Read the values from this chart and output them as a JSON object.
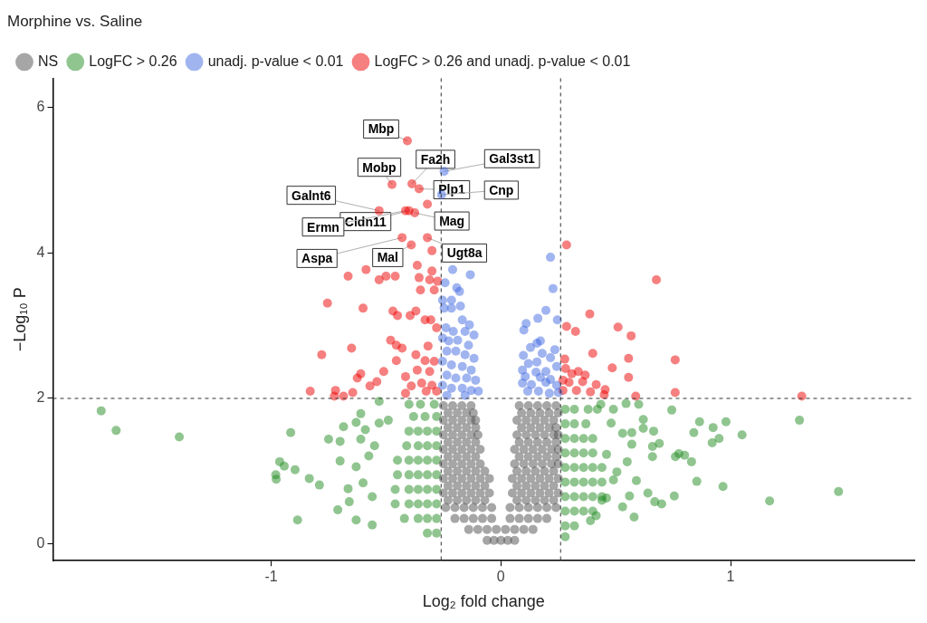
{
  "chart_data": {
    "type": "scatter",
    "title": "Morphine vs. Saline",
    "xlabel": "Log₂ fold change",
    "ylabel": "−Log₁₀ P",
    "legend": "top left",
    "marker": "circle",
    "xlim": [
      -1.95,
      1.8
    ],
    "xticks": [
      -1,
      0,
      1
    ],
    "ylim": [
      -0.23,
      6.4
    ],
    "yticks": [
      0,
      2,
      4,
      6
    ],
    "ref_lines": [
      {
        "axis": "x",
        "value": -0.26,
        "line_style": "dashed",
        "color": "#333333"
      },
      {
        "axis": "x",
        "value": 0.26,
        "line_style": "dashed",
        "color": "#333333"
      },
      {
        "axis": "y",
        "value": 2,
        "line_style": "dashed",
        "color": "#333333"
      }
    ],
    "series": [
      {
        "name": "NS",
        "color": "#4d4d4d",
        "x": [
          -0.06,
          -0.03,
          0,
          0.03,
          0.06,
          -0.14,
          -0.1,
          -0.06,
          -0.02,
          0.02,
          0.06,
          0.1,
          0.14,
          -0.2,
          -0.16,
          -0.12,
          -0.08,
          -0.04,
          0.04,
          0.08,
          0.12,
          0.16,
          0.2,
          -0.24,
          -0.2,
          -0.16,
          -0.12,
          -0.08,
          -0.04,
          0.04,
          0.08,
          0.12,
          0.16,
          0.2,
          0.24,
          -0.23,
          -0.19,
          -0.15,
          -0.11,
          -0.07,
          0.07,
          0.11,
          0.15,
          0.19,
          0.23,
          -0.25,
          -0.21,
          -0.17,
          -0.13,
          -0.09,
          -0.05,
          0.05,
          0.09,
          0.13,
          0.17,
          0.21,
          0.25,
          -0.23,
          -0.19,
          -0.15,
          -0.11,
          -0.07,
          0.07,
          0.11,
          0.15,
          0.19,
          0.23,
          -0.25,
          -0.21,
          -0.17,
          -0.13,
          -0.09,
          -0.05,
          0.05,
          0.09,
          0.13,
          0.17,
          0.21,
          0.25,
          -0.23,
          -0.19,
          -0.15,
          -0.11,
          -0.07,
          0.07,
          0.11,
          0.15,
          0.19,
          0.23,
          -0.25,
          -0.21,
          -0.17,
          -0.13,
          -0.09,
          0.06,
          0.1,
          0.14,
          0.18,
          0.22,
          0.25,
          -0.23,
          -0.19,
          -0.15,
          -0.11,
          0.08,
          0.12,
          0.16,
          0.2,
          0.24,
          -0.25,
          -0.21,
          -0.17,
          -0.13,
          -0.09,
          0.06,
          0.1,
          0.14,
          0.18,
          0.22,
          0.25,
          -0.23,
          -0.19,
          -0.15,
          -0.11,
          0.08,
          0.12,
          0.16,
          0.2,
          0.24,
          -0.25,
          -0.21,
          -0.17,
          -0.13,
          -0.1,
          0.07,
          0.11,
          0.15,
          0.19,
          0.23,
          0.25,
          -0.23,
          -0.19,
          -0.15,
          -0.11,
          0.09,
          0.13,
          0.17,
          0.21,
          0.24,
          -0.25,
          -0.21,
          -0.17,
          -0.13,
          -0.11,
          0.07,
          0.11,
          0.15,
          0.19,
          0.23,
          -0.23,
          -0.19,
          -0.15,
          -0.12,
          0.09,
          0.13,
          0.17,
          0.21,
          0.25,
          -0.25,
          -0.21,
          -0.17,
          -0.13,
          0.08,
          0.12,
          0.16,
          0.2,
          0.24
        ],
        "values": [
          0.05,
          0.05,
          0.05,
          0.05,
          0.05,
          0.2,
          0.2,
          0.2,
          0.2,
          0.2,
          0.2,
          0.2,
          0.2,
          0.35,
          0.35,
          0.35,
          0.35,
          0.35,
          0.35,
          0.35,
          0.35,
          0.35,
          0.35,
          0.5,
          0.5,
          0.5,
          0.5,
          0.5,
          0.5,
          0.5,
          0.5,
          0.5,
          0.5,
          0.5,
          0.5,
          0.6,
          0.6,
          0.6,
          0.6,
          0.6,
          0.6,
          0.6,
          0.6,
          0.6,
          0.6,
          0.7,
          0.7,
          0.7,
          0.7,
          0.7,
          0.7,
          0.7,
          0.7,
          0.7,
          0.7,
          0.7,
          0.7,
          0.8,
          0.8,
          0.8,
          0.8,
          0.8,
          0.8,
          0.8,
          0.8,
          0.8,
          0.8,
          0.9,
          0.9,
          0.9,
          0.9,
          0.9,
          0.9,
          0.9,
          0.9,
          0.9,
          0.9,
          0.9,
          0.9,
          1.0,
          1.0,
          1.0,
          1.0,
          1.0,
          1.0,
          1.0,
          1.0,
          1.0,
          1.0,
          1.1,
          1.1,
          1.1,
          1.1,
          1.1,
          1.1,
          1.1,
          1.1,
          1.1,
          1.1,
          1.1,
          1.2,
          1.2,
          1.2,
          1.2,
          1.2,
          1.2,
          1.2,
          1.2,
          1.2,
          1.3,
          1.3,
          1.3,
          1.3,
          1.3,
          1.3,
          1.3,
          1.3,
          1.3,
          1.3,
          1.3,
          1.4,
          1.4,
          1.4,
          1.4,
          1.4,
          1.4,
          1.4,
          1.4,
          1.4,
          1.5,
          1.5,
          1.5,
          1.5,
          1.5,
          1.5,
          1.5,
          1.5,
          1.5,
          1.5,
          1.5,
          1.6,
          1.6,
          1.6,
          1.6,
          1.6,
          1.6,
          1.6,
          1.6,
          1.6,
          1.7,
          1.7,
          1.7,
          1.7,
          1.7,
          1.7,
          1.7,
          1.7,
          1.7,
          1.7,
          1.8,
          1.8,
          1.8,
          1.8,
          1.8,
          1.8,
          1.8,
          1.8,
          1.8,
          1.9,
          1.9,
          1.9,
          1.9,
          1.9,
          1.9,
          1.9,
          1.9,
          1.9
        ]
      },
      {
        "name": "LogFC > 0.26",
        "color": "#228b22",
        "x": [
          -1.74,
          -1.675,
          -1.4,
          -0.915,
          -0.963,
          -0.943,
          -0.98,
          -0.978,
          -0.896,
          -0.885,
          -0.834,
          -0.79,
          -0.75,
          -0.71,
          -0.7,
          -0.7,
          -0.685,
          -0.665,
          -0.66,
          -0.63,
          -0.56,
          -0.63,
          -0.63,
          -0.6,
          -0.61,
          -0.59,
          -0.61,
          -0.56,
          -0.575,
          -0.55,
          -0.53,
          -0.49,
          -0.53,
          -0.28,
          -0.32,
          -0.28,
          -0.32,
          -0.36,
          -0.42,
          -0.28,
          -0.32,
          -0.36,
          -0.4,
          -0.46,
          -0.28,
          -0.32,
          -0.36,
          -0.4,
          -0.46,
          -0.28,
          -0.32,
          -0.36,
          -0.4,
          -0.45,
          -0.28,
          -0.32,
          -0.36,
          -0.4,
          -0.45,
          -0.28,
          -0.32,
          -0.36,
          -0.41,
          -0.28,
          -0.32,
          -0.36,
          -0.4,
          -0.28,
          -0.33,
          -0.38,
          -0.29,
          -0.35,
          -0.4,
          0.744,
          0.865,
          0.924,
          0.98,
          0.84,
          0.92,
          0.95,
          1.05,
          1.3,
          1.47,
          1.17,
          0.967,
          0.853,
          0.755,
          0.64,
          0.7,
          0.67,
          0.58,
          0.76,
          0.775,
          0.8,
          0.83,
          0.66,
          0.66,
          0.69,
          0.665,
          0.62,
          0.62,
          0.57,
          0.57,
          0.59,
          0.56,
          0.53,
          0.39,
          0.415,
          0.44,
          0.46,
          0.49,
          0.55,
          0.505,
          0.46,
          0.53,
          0.48,
          0.49,
          0.6,
          0.545,
          0.435,
          0.28,
          0.28,
          0.32,
          0.28,
          0.32,
          0.36,
          0.4,
          0.28,
          0.32,
          0.36,
          0.4,
          0.44,
          0.28,
          0.32,
          0.36,
          0.4,
          0.44,
          0.28,
          0.32,
          0.36,
          0.4,
          0.44,
          0.28,
          0.32,
          0.36,
          0.4,
          0.28,
          0.32,
          0.36,
          0.4,
          0.28,
          0.32,
          0.37,
          0.28,
          0.32,
          0.38,
          0.42
        ],
        "values": [
          1.83,
          1.56,
          1.47,
          1.53,
          1.13,
          1.07,
          0.95,
          0.89,
          1.02,
          0.33,
          0.9,
          0.81,
          1.44,
          0.47,
          1.14,
          1.41,
          1.61,
          0.76,
          0.58,
          0.33,
          0.26,
          1.06,
          1.67,
          0.84,
          1.44,
          1.57,
          1.79,
          0.65,
          1.21,
          1.35,
          1.66,
          1.7,
          1.96,
          0.15,
          0.15,
          0.35,
          0.35,
          0.35,
          0.35,
          0.55,
          0.55,
          0.55,
          0.55,
          0.55,
          0.75,
          0.75,
          0.75,
          0.75,
          0.75,
          0.95,
          0.95,
          0.95,
          0.95,
          0.95,
          1.15,
          1.15,
          1.15,
          1.15,
          1.15,
          1.35,
          1.35,
          1.35,
          1.35,
          1.55,
          1.55,
          1.55,
          1.55,
          1.75,
          1.75,
          1.75,
          1.92,
          1.92,
          1.92,
          1.84,
          1.68,
          1.6,
          1.68,
          1.53,
          1.39,
          1.45,
          1.5,
          1.7,
          0.72,
          0.59,
          0.79,
          0.86,
          0.66,
          0.7,
          0.55,
          0.58,
          0.37,
          1.2,
          1.24,
          1.22,
          1.13,
          1.2,
          1.34,
          1.38,
          1.55,
          1.71,
          1.59,
          1.53,
          1.37,
          0.87,
          0.66,
          0.51,
          0.32,
          0.39,
          0.6,
          0.63,
          0.88,
          1.13,
          0.99,
          1.23,
          1.52,
          1.66,
          1.85,
          1.92,
          1.93,
          1.92,
          0.1,
          0.25,
          0.25,
          0.45,
          0.45,
          0.45,
          0.45,
          0.65,
          0.65,
          0.65,
          0.65,
          0.65,
          0.85,
          0.85,
          0.85,
          0.85,
          0.85,
          1.05,
          1.05,
          1.05,
          1.05,
          1.05,
          1.25,
          1.25,
          1.25,
          1.25,
          1.45,
          1.45,
          1.45,
          1.45,
          1.65,
          1.65,
          1.65,
          1.85,
          1.85,
          1.85,
          1.85
        ]
      },
      {
        "name": "unadj. p-value < 0.01",
        "color": "#4169e1",
        "x": [
          -0.247,
          -0.258,
          -0.21,
          -0.133,
          -0.243,
          -0.192,
          -0.18,
          -0.254,
          -0.215,
          -0.247,
          -0.215,
          -0.176,
          -0.168,
          -0.137,
          -0.239,
          -0.207,
          -0.156,
          -0.117,
          -0.254,
          -0.227,
          -0.188,
          -0.141,
          -0.235,
          -0.196,
          -0.156,
          -0.117,
          -0.254,
          -0.215,
          -0.168,
          -0.129,
          -0.235,
          -0.196,
          -0.149,
          -0.11,
          -0.254,
          -0.215,
          -0.168,
          -0.129,
          -0.098,
          -0.235,
          -0.156,
          0.216,
          0.227,
          0.196,
          0.161,
          0.246,
          0.11,
          0.1,
          0.172,
          0.157,
          0.129,
          0.18,
          0.235,
          0.098,
          0.216,
          0.12,
          0.157,
          0.243,
          0.094,
          0.153,
          0.196,
          0.106,
          0.172,
          0.216,
          0.094,
          0.133,
          0.196,
          0.243,
          0.117,
          0.164,
          0.211,
          0.25
        ],
        "values": [
          5.12,
          4.8,
          3.77,
          3.7,
          3.59,
          3.52,
          3.47,
          3.35,
          3.35,
          3.24,
          3.24,
          3.27,
          3.08,
          3.01,
          2.97,
          2.92,
          2.92,
          2.87,
          2.83,
          2.79,
          2.8,
          2.73,
          2.65,
          2.65,
          2.6,
          2.55,
          2.51,
          2.46,
          2.44,
          2.39,
          2.32,
          2.28,
          2.28,
          2.25,
          2.18,
          2.14,
          2.14,
          2.11,
          2.1,
          2.04,
          2.04,
          3.94,
          3.51,
          3.21,
          3.1,
          3.08,
          3.03,
          2.94,
          2.79,
          2.76,
          2.7,
          2.62,
          2.67,
          2.59,
          2.56,
          2.48,
          2.5,
          2.44,
          2.39,
          2.36,
          2.37,
          2.3,
          2.29,
          2.26,
          2.21,
          2.19,
          2.22,
          2.18,
          2.1,
          2.1,
          2.07,
          2.08
        ]
      },
      {
        "name": "LogFC > 0.26 and unadj. p-value < 0.01",
        "color": "#ee0000",
        "x": [
          -0.407,
          -0.474,
          -0.387,
          -0.356,
          -0.32,
          -0.53,
          -0.4,
          -0.415,
          -0.375,
          -0.43,
          -0.39,
          -0.32,
          -0.3,
          -0.364,
          -0.3,
          -0.587,
          -0.665,
          -0.53,
          -0.5,
          -0.46,
          -0.356,
          -0.31,
          -0.35,
          -0.29,
          -0.275,
          -0.755,
          -0.6,
          -0.47,
          -0.45,
          -0.395,
          -0.37,
          -0.33,
          -0.305,
          -0.28,
          -0.65,
          -0.78,
          -0.48,
          -0.455,
          -0.43,
          -0.317,
          -0.37,
          -0.455,
          -0.33,
          -0.29,
          -0.61,
          -0.625,
          -0.51,
          -0.54,
          -0.57,
          -0.415,
          -0.364,
          -0.31,
          -0.39,
          -0.345,
          -0.3,
          -0.28,
          -0.325,
          -0.83,
          -0.72,
          -0.685,
          -0.645,
          -0.725,
          -0.415,
          0.286,
          0.677,
          0.387,
          0.286,
          0.325,
          0.51,
          0.567,
          0.4,
          0.278,
          0.759,
          0.556,
          0.485,
          0.282,
          0.309,
          0.337,
          0.367,
          0.556,
          0.27,
          0.297,
          0.356,
          0.415,
          0.454,
          0.27,
          0.329,
          0.39,
          0.759,
          1.31,
          0.587,
          0.45
        ],
        "values": [
          5.54,
          4.94,
          4.95,
          4.88,
          4.67,
          4.58,
          4.58,
          4.58,
          4.55,
          4.21,
          4.11,
          4.21,
          4.03,
          3.83,
          3.75,
          3.77,
          3.68,
          3.63,
          3.68,
          3.68,
          3.66,
          3.63,
          3.49,
          3.49,
          3.61,
          3.31,
          3.24,
          3.2,
          3.14,
          3.14,
          3.2,
          3.08,
          3.08,
          2.97,
          2.69,
          2.6,
          2.8,
          2.73,
          2.69,
          2.72,
          2.6,
          2.52,
          2.52,
          2.51,
          2.34,
          2.28,
          2.37,
          2.23,
          2.17,
          2.3,
          2.39,
          2.37,
          2.17,
          2.21,
          2.18,
          2.1,
          2.1,
          2.1,
          2.11,
          2.03,
          2.08,
          2.03,
          2.07,
          4.11,
          3.63,
          3.16,
          2.99,
          2.92,
          2.98,
          2.86,
          2.62,
          2.54,
          2.53,
          2.55,
          2.42,
          2.41,
          2.34,
          2.37,
          2.32,
          2.29,
          2.25,
          2.22,
          2.23,
          2.19,
          2.12,
          2.11,
          2.11,
          2.09,
          2.08,
          2.03,
          2.03,
          2.05
        ]
      }
    ],
    "annotations": [
      {
        "text": "Mbp",
        "x": -0.407,
        "y": 5.54
      },
      {
        "text": "Fa2h",
        "x": -0.387,
        "y": 4.95
      },
      {
        "text": "Gal3st1",
        "x": -0.247,
        "y": 5.12
      },
      {
        "text": "Mobp",
        "x": -0.474,
        "y": 4.94
      },
      {
        "text": "Plp1",
        "x": -0.356,
        "y": 4.88
      },
      {
        "text": "Cnp",
        "x": -0.258,
        "y": 4.8
      },
      {
        "text": "Galnt6",
        "x": -0.53,
        "y": 4.58
      },
      {
        "text": "Cldn11",
        "x": -0.4,
        "y": 4.58
      },
      {
        "text": "Ermn",
        "x": -0.415,
        "y": 4.58
      },
      {
        "text": "Mag",
        "x": -0.375,
        "y": 4.55
      },
      {
        "text": "Aspa",
        "x": -0.43,
        "y": 4.21
      },
      {
        "text": "Mal",
        "x": -0.39,
        "y": 4.11
      },
      {
        "text": "Ugt8a",
        "x": -0.32,
        "y": 4.21
      }
    ]
  }
}
